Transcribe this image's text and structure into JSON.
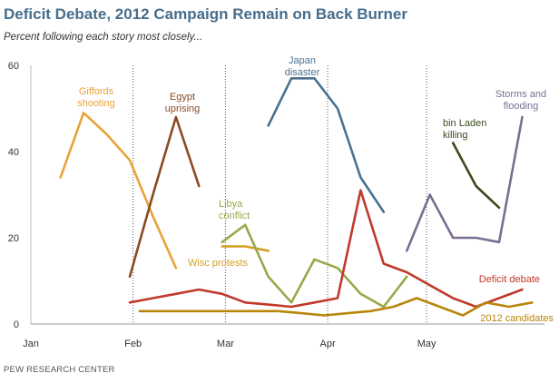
{
  "title": "Deficit Debate, 2012 Campaign Remain on Back Burner",
  "subtitle": "Percent following each story most closely...",
  "source": "PEW RESEARCH CENTER",
  "chart_data": {
    "type": "line",
    "ylim": [
      0,
      60
    ],
    "y_ticks": [
      0,
      20,
      40,
      60
    ],
    "x_ticks": [
      {
        "label": "Jan",
        "date": "2011-01-01"
      },
      {
        "label": "Feb",
        "date": "2011-02-01"
      },
      {
        "label": "Mar",
        "date": "2011-03-01"
      },
      {
        "label": "Apr",
        "date": "2011-04-01"
      },
      {
        "label": "May",
        "date": "2011-05-01"
      }
    ],
    "month_dividers": [
      "2011-02-01",
      "2011-03-01",
      "2011-04-01",
      "2011-05-01"
    ],
    "grid": false,
    "series": [
      {
        "id": "giffords",
        "label": [
          "Giffords",
          "shooting"
        ],
        "color": "#e8a33a",
        "dates": [
          "2011-01-10",
          "2011-01-17",
          "2011-01-24",
          "2011-01-31",
          "2011-02-07",
          "2011-02-14"
        ],
        "values": [
          34,
          49,
          44,
          38,
          25,
          13
        ]
      },
      {
        "id": "egypt",
        "label": [
          "Egypt",
          "uprising"
        ],
        "color": "#8a4a22",
        "dates": [
          "2011-01-31",
          "2011-02-07",
          "2011-02-14",
          "2011-02-21"
        ],
        "values": [
          11,
          30,
          48,
          32
        ]
      },
      {
        "id": "wisc",
        "label": [
          "Wisc protests"
        ],
        "color": "#d4a022",
        "dates": [
          "2011-02-28",
          "2011-03-07",
          "2011-03-14"
        ],
        "values": [
          18,
          18,
          17
        ]
      },
      {
        "id": "libya",
        "label": [
          "Libya",
          "conflict"
        ],
        "color": "#98a84a",
        "dates": [
          "2011-02-28",
          "2011-03-07",
          "2011-03-14",
          "2011-03-21",
          "2011-03-28",
          "2011-04-04",
          "2011-04-11",
          "2011-04-18",
          "2011-04-25"
        ],
        "values": [
          19,
          23,
          11,
          5,
          15,
          13,
          7,
          4,
          11
        ]
      },
      {
        "id": "japan",
        "label": [
          "Japan",
          "disaster"
        ],
        "color": "#4a7290",
        "dates": [
          "2011-03-14",
          "2011-03-21",
          "2011-03-28",
          "2011-04-04",
          "2011-04-11",
          "2011-04-18"
        ],
        "values": [
          46,
          57,
          57,
          50,
          34,
          26
        ]
      },
      {
        "id": "deficit",
        "label": [
          "Deficit debate"
        ],
        "color": "#c0392b",
        "dates": [
          "2011-01-31",
          "2011-02-07",
          "2011-02-14",
          "2011-02-21",
          "2011-02-28",
          "2011-03-07",
          "2011-03-14",
          "2011-03-21",
          "2011-03-28",
          "2011-04-04",
          "2011-04-11",
          "2011-04-18",
          "2011-04-25",
          "2011-05-02",
          "2011-05-09",
          "2011-05-16",
          "2011-05-23",
          "2011-05-30"
        ],
        "values": [
          5,
          6,
          7,
          8,
          7,
          5,
          4.5,
          4,
          5,
          6,
          31,
          14,
          12,
          9,
          6,
          4,
          6,
          8
        ]
      },
      {
        "id": "candidates",
        "label": [
          "2012 candidates"
        ],
        "color": "#b8860b",
        "dates": [
          "2011-02-03",
          "2011-02-10",
          "2011-02-17",
          "2011-02-24",
          "2011-03-03",
          "2011-03-10",
          "2011-03-17",
          "2011-03-24",
          "2011-03-31",
          "2011-04-07",
          "2011-04-14",
          "2011-04-21",
          "2011-04-28",
          "2011-05-05",
          "2011-05-12",
          "2011-05-19",
          "2011-05-26",
          "2011-06-02"
        ],
        "values": [
          3,
          3,
          3,
          3,
          3,
          3,
          3,
          2.5,
          2,
          2.5,
          3,
          4,
          6,
          4,
          2,
          5,
          4,
          5
        ]
      },
      {
        "id": "storms",
        "label": [
          "Storms and",
          "flooding"
        ],
        "color": "#7a6e94",
        "dates": [
          "2011-04-25",
          "2011-05-02",
          "2011-05-09",
          "2011-05-16",
          "2011-05-23",
          "2011-05-30"
        ],
        "values": [
          17,
          30,
          20,
          20,
          19,
          48
        ]
      },
      {
        "id": "binladen",
        "label": [
          "bin Laden",
          "killing"
        ],
        "color": "#3b4a1e",
        "dates": [
          "2011-05-09",
          "2011-05-16",
          "2011-05-23"
        ],
        "values": [
          42,
          32,
          27
        ]
      }
    ]
  }
}
